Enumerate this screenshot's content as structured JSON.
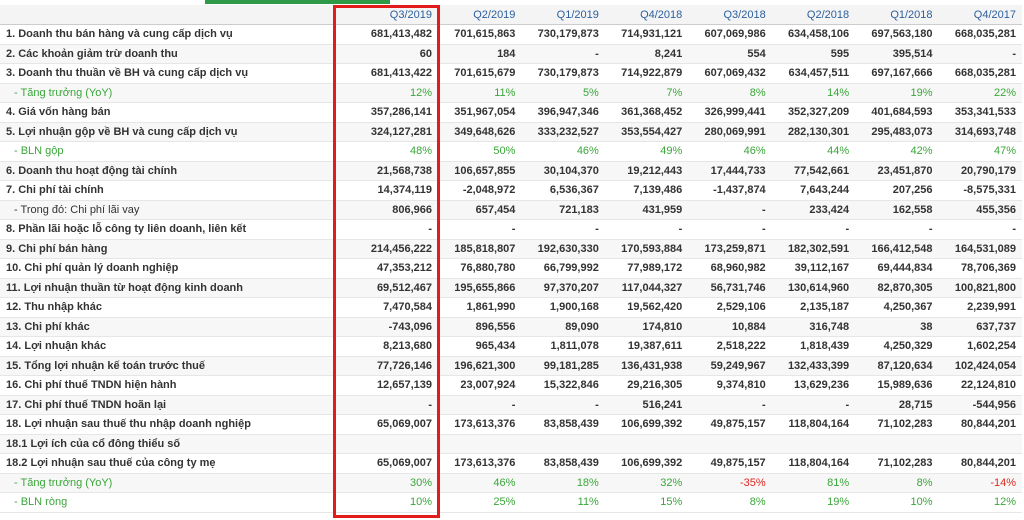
{
  "table": {
    "columns": [
      "Q3/2019",
      "Q2/2019",
      "Q1/2019",
      "Q4/2018",
      "Q3/2018",
      "Q2/2018",
      "Q1/2018",
      "Q4/2017"
    ],
    "rows": [
      {
        "label": "1. Doanh thu bán hàng và cung cấp dịch vụ",
        "cells": [
          "681,413,482",
          "701,615,863",
          "730,179,873",
          "714,931,121",
          "607,069,986",
          "634,458,106",
          "697,563,180",
          "668,035,281"
        ]
      },
      {
        "label": "2. Các khoản giảm trừ doanh thu",
        "cells": [
          "60",
          "184",
          "-",
          "8,241",
          "554",
          "595",
          "395,514",
          "-"
        ]
      },
      {
        "label": "3. Doanh thu thuần về BH và cung cấp dịch vụ",
        "cells": [
          "681,413,422",
          "701,615,679",
          "730,179,873",
          "714,922,879",
          "607,069,432",
          "634,457,511",
          "697,167,666",
          "668,035,281"
        ]
      },
      {
        "label": "- Tăng trưởng (YoY)",
        "cells": [
          "12%",
          "11%",
          "5%",
          "7%",
          "8%",
          "14%",
          "19%",
          "22%"
        ]
      },
      {
        "label": "4. Giá vốn hàng bán",
        "cells": [
          "357,286,141",
          "351,967,054",
          "396,947,346",
          "361,368,452",
          "326,999,441",
          "352,327,209",
          "401,684,593",
          "353,341,533"
        ]
      },
      {
        "label": "5. Lợi nhuận gộp về BH và cung cấp dịch vụ",
        "cells": [
          "324,127,281",
          "349,648,626",
          "333,232,527",
          "353,554,427",
          "280,069,991",
          "282,130,301",
          "295,483,073",
          "314,693,748"
        ]
      },
      {
        "label": "- BLN gộp",
        "cells": [
          "48%",
          "50%",
          "46%",
          "49%",
          "46%",
          "44%",
          "42%",
          "47%"
        ]
      },
      {
        "label": "6. Doanh thu hoạt động tài chính",
        "cells": [
          "21,568,738",
          "106,657,855",
          "30,104,370",
          "19,212,443",
          "17,444,733",
          "77,542,661",
          "23,451,870",
          "20,790,179"
        ]
      },
      {
        "label": "7. Chi phí tài chính",
        "cells": [
          "14,374,119",
          "-2,048,972",
          "6,536,367",
          "7,139,486",
          "-1,437,874",
          "7,643,244",
          "207,256",
          "-8,575,331"
        ]
      },
      {
        "label": "- Trong đó: Chi phí lãi vay",
        "cells": [
          "806,966",
          "657,454",
          "721,183",
          "431,959",
          "-",
          "233,424",
          "162,558",
          "455,356"
        ]
      },
      {
        "label": "8. Phần lãi hoặc lỗ công ty liên doanh, liên kết",
        "cells": [
          "-",
          "-",
          "-",
          "-",
          "-",
          "-",
          "-",
          "-"
        ]
      },
      {
        "label": "9. Chi phí bán hàng",
        "cells": [
          "214,456,222",
          "185,818,807",
          "192,630,330",
          "170,593,884",
          "173,259,871",
          "182,302,591",
          "166,412,548",
          "164,531,089"
        ]
      },
      {
        "label": "10. Chi phí quản lý doanh nghiệp",
        "cells": [
          "47,353,212",
          "76,880,780",
          "66,799,992",
          "77,989,172",
          "68,960,982",
          "39,112,167",
          "69,444,834",
          "78,706,369"
        ]
      },
      {
        "label": "11. Lợi nhuận thuần từ hoạt động kinh doanh",
        "cells": [
          "69,512,467",
          "195,655,866",
          "97,370,207",
          "117,044,327",
          "56,731,746",
          "130,614,960",
          "82,870,305",
          "100,821,800"
        ]
      },
      {
        "label": "12. Thu nhập khác",
        "cells": [
          "7,470,584",
          "1,861,990",
          "1,900,168",
          "19,562,420",
          "2,529,106",
          "2,135,187",
          "4,250,367",
          "2,239,991"
        ]
      },
      {
        "label": "13. Chi phí khác",
        "cells": [
          "-743,096",
          "896,556",
          "89,090",
          "174,810",
          "10,884",
          "316,748",
          "38",
          "637,737"
        ]
      },
      {
        "label": "14. Lợi nhuận khác",
        "cells": [
          "8,213,680",
          "965,434",
          "1,811,078",
          "19,387,611",
          "2,518,222",
          "1,818,439",
          "4,250,329",
          "1,602,254"
        ]
      },
      {
        "label": "15. Tổng lợi nhuận kế toán trước thuế",
        "cells": [
          "77,726,146",
          "196,621,300",
          "99,181,285",
          "136,431,938",
          "59,249,967",
          "132,433,399",
          "87,120,634",
          "102,424,054"
        ]
      },
      {
        "label": "16. Chi phí thuế TNDN hiện hành",
        "cells": [
          "12,657,139",
          "23,007,924",
          "15,322,846",
          "29,216,305",
          "9,374,810",
          "13,629,236",
          "15,989,636",
          "22,124,810"
        ]
      },
      {
        "label": "17. Chi phí thuế TNDN hoãn lại",
        "cells": [
          "-",
          "-",
          "-",
          "516,241",
          "-",
          "-",
          "28,715",
          "-544,956"
        ]
      },
      {
        "label": "18. Lợi nhuận sau thuế thu nhập doanh nghiệp",
        "cells": [
          "65,069,007",
          "173,613,376",
          "83,858,439",
          "106,699,392",
          "49,875,157",
          "118,804,164",
          "71,102,283",
          "80,844,201"
        ]
      },
      {
        "label": "18.1 Lợi ích của cổ đông thiểu số"
      },
      {
        "label": "18.2 Lợi nhuận sau thuế của công ty mẹ",
        "cells": [
          "65,069,007",
          "173,613,376",
          "83,858,439",
          "106,699,392",
          "49,875,157",
          "118,804,164",
          "71,102,283",
          "80,844,201"
        ]
      },
      {
        "label": "- Tăng trưởng (YoY)",
        "cells": [
          "30%",
          "46%",
          "18%",
          "32%",
          "-35%",
          "81%",
          "8%",
          "-14%"
        ]
      },
      {
        "label": "- BLN ròng",
        "cells": [
          "10%",
          "25%",
          "11%",
          "15%",
          "8%",
          "19%",
          "10%",
          "12%"
        ]
      }
    ]
  }
}
